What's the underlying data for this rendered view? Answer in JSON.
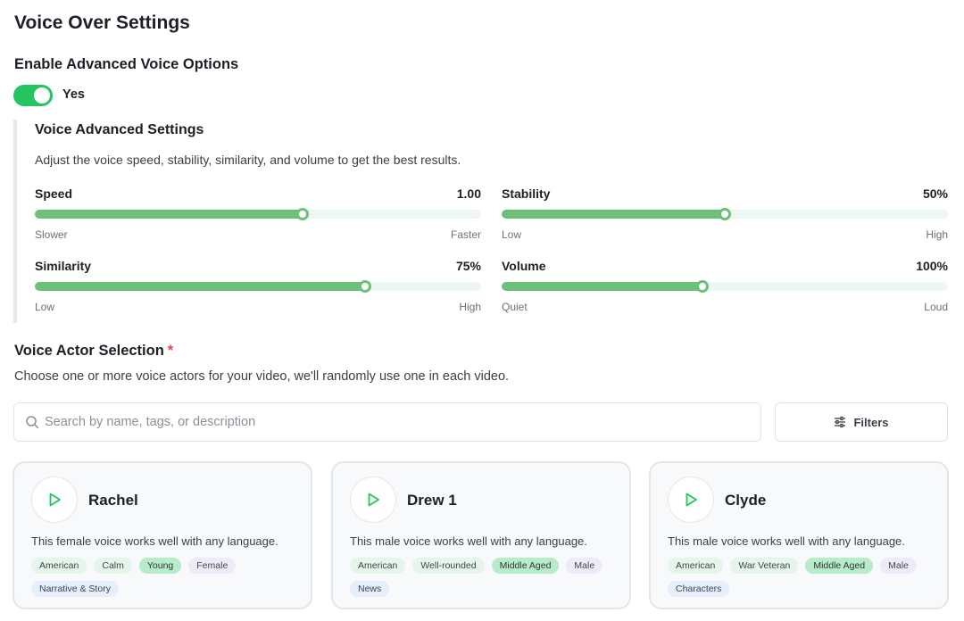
{
  "page": {
    "title": "Voice Over Settings"
  },
  "advanced_toggle": {
    "label": "Enable Advanced Voice Options",
    "state_label": "Yes",
    "enabled": true
  },
  "advanced": {
    "title": "Voice Advanced Settings",
    "description": "Adjust the voice speed, stability, similarity, and volume to get the best results.",
    "sliders": {
      "speed": {
        "label": "Speed",
        "value": "1.00",
        "min_label": "Slower",
        "max_label": "Faster",
        "level": 0.6
      },
      "stability": {
        "label": "Stability",
        "value": "50%",
        "min_label": "Low",
        "max_label": "High",
        "level": 0.5
      },
      "similarity": {
        "label": "Similarity",
        "value": "75%",
        "min_label": "Low",
        "max_label": "High",
        "level": 0.74
      },
      "volume": {
        "label": "Volume",
        "value": "100%",
        "min_label": "Quiet",
        "max_label": "Loud",
        "level": 0.45
      }
    }
  },
  "actors": {
    "title": "Voice Actor Selection",
    "required_mark": "*",
    "description": "Choose one or more voice actors for your video, we'll randomly use one in each video.",
    "search_placeholder": "Search by name, tags, or description",
    "filters_label": "Filters",
    "cards": [
      {
        "name": "Rachel",
        "description": "This female voice works well with any language.",
        "tags": [
          {
            "text": "American",
            "style": "green"
          },
          {
            "text": "Calm",
            "style": "green"
          },
          {
            "text": "Young",
            "style": "green-strong"
          },
          {
            "text": "Female",
            "style": "purple"
          },
          {
            "text": "Narrative & Story",
            "style": "blue"
          }
        ]
      },
      {
        "name": "Drew 1",
        "description": "This male voice works well with any language.",
        "tags": [
          {
            "text": "American",
            "style": "green"
          },
          {
            "text": "Well-rounded",
            "style": "green"
          },
          {
            "text": "Middle Aged",
            "style": "green-strong"
          },
          {
            "text": "Male",
            "style": "purple"
          },
          {
            "text": "News",
            "style": "blue"
          }
        ]
      },
      {
        "name": "Clyde",
        "description": "This male voice works well with any language.",
        "tags": [
          {
            "text": "American",
            "style": "green"
          },
          {
            "text": "War Veteran",
            "style": "green"
          },
          {
            "text": "Middle Aged",
            "style": "green-strong"
          },
          {
            "text": "Male",
            "style": "purple"
          },
          {
            "text": "Characters",
            "style": "blue"
          }
        ]
      }
    ]
  },
  "colors": {
    "accent": "#22c55e",
    "slider_fill": "#6cc07a",
    "slider_track": "#edf7ef",
    "required": "#e5484d"
  },
  "icons": {
    "play": "play-icon",
    "search": "search-icon",
    "filters": "sliders-icon"
  }
}
